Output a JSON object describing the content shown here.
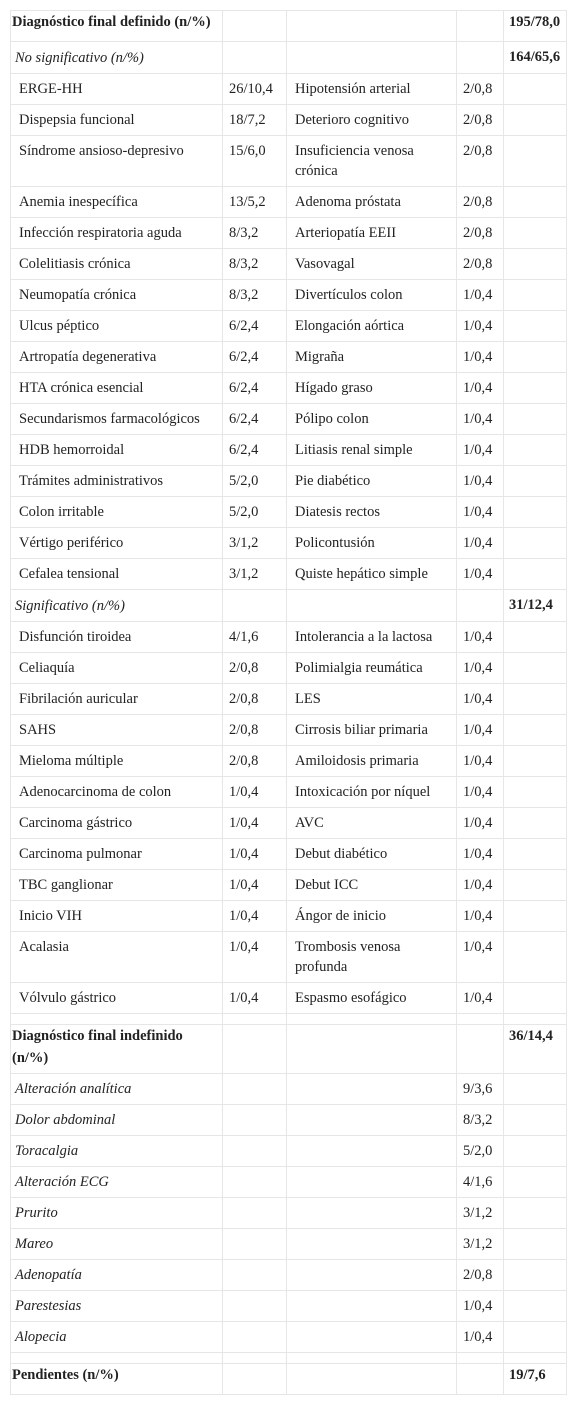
{
  "table": {
    "sections": [
      {
        "title": "Diagnóstico final definido (n/%)",
        "total": "195/78,0",
        "groups": [
          {
            "title": "No significativo (n/%)",
            "total": "164/65,6",
            "rows": [
              [
                "ERGE-HH",
                "26/10,4",
                "Hipotensión arterial",
                "2/0,8"
              ],
              [
                "Dispepsia funcional",
                "18/7,2",
                "Deterioro cognitivo",
                "2/0,8"
              ],
              [
                "Síndrome ansioso-depresivo",
                "15/6,0",
                "Insuficiencia venosa crónica",
                "2/0,8"
              ],
              [
                "Anemia inespecífica",
                "13/5,2",
                "Adenoma próstata",
                "2/0,8"
              ],
              [
                "Infección respiratoria aguda",
                "8/3,2",
                "Arteriopatía EEII",
                "2/0,8"
              ],
              [
                "Colelitiasis crónica",
                "8/3,2",
                "Vasovagal",
                "2/0,8"
              ],
              [
                "Neumopatía crónica",
                "8/3,2",
                "Divertículos colon",
                "1/0,4"
              ],
              [
                "Ulcus péptico",
                "6/2,4",
                "Elongación aórtica",
                "1/0,4"
              ],
              [
                "Artropatía degenerativa",
                "6/2,4",
                "Migraña",
                "1/0,4"
              ],
              [
                "HTA crónica esencial",
                "6/2,4",
                "Hígado graso",
                "1/0,4"
              ],
              [
                "Secundarismos farmacológicos",
                "6/2,4",
                "Pólipo colon",
                "1/0,4"
              ],
              [
                "HDB hemorroidal",
                "6/2,4",
                "Litiasis renal simple",
                "1/0,4"
              ],
              [
                "Trámites administrativos",
                "5/2,0",
                "Pie diabético",
                "1/0,4"
              ],
              [
                "Colon irritable",
                "5/2,0",
                "Diatesis rectos",
                "1/0,4"
              ],
              [
                "Vértigo periférico",
                "3/1,2",
                "Policontusión",
                "1/0,4"
              ],
              [
                "Cefalea tensional",
                "3/1,2",
                "Quiste hepático simple",
                "1/0,4"
              ]
            ]
          },
          {
            "title": "Significativo (n/%)",
            "total": "31/12,4",
            "rows": [
              [
                "Disfunción tiroidea",
                "4/1,6",
                "Intolerancia a la lactosa",
                "1/0,4"
              ],
              [
                "Celiaquía",
                "2/0,8",
                "Polimialgia reumática",
                "1/0,4"
              ],
              [
                "Fibrilación auricular",
                "2/0,8",
                "LES",
                "1/0,4"
              ],
              [
                "SAHS",
                "2/0,8",
                "Cirrosis biliar primaria",
                "1/0,4"
              ],
              [
                "Mieloma múltiple",
                "2/0,8",
                "Amiloidosis primaria",
                "1/0,4"
              ],
              [
                "Adenocarcinoma de colon",
                "1/0,4",
                "Intoxicación por níquel",
                "1/0,4"
              ],
              [
                "Carcinoma gástrico",
                "1/0,4",
                "AVC",
                "1/0,4"
              ],
              [
                "Carcinoma pulmonar",
                "1/0,4",
                "Debut diabético",
                "1/0,4"
              ],
              [
                "TBC ganglionar",
                "1/0,4",
                "Debut ICC",
                "1/0,4"
              ],
              [
                "Inicio VIH",
                "1/0,4",
                "Ángor de inicio",
                "1/0,4"
              ],
              [
                "Acalasia",
                "1/0,4",
                "Trombosis venosa profunda",
                "1/0,4"
              ],
              [
                "Vólvulo gástrico",
                "1/0,4",
                "Espasmo esofágico",
                "1/0,4"
              ]
            ]
          }
        ]
      },
      {
        "title": "Diagnóstico final indefinido (n/%)",
        "total": "36/14,4",
        "items": [
          [
            "Alteración analítica",
            "9/3,6"
          ],
          [
            "Dolor abdominal",
            "8/3,2"
          ],
          [
            "Toracalgia",
            "5/2,0"
          ],
          [
            "Alteración ECG",
            "4/1,6"
          ],
          [
            "Prurito",
            "3/1,2"
          ],
          [
            "Mareo",
            "3/1,2"
          ],
          [
            "Adenopatía",
            "2/0,8"
          ],
          [
            "Parestesias",
            "1/0,4"
          ],
          [
            "Alopecia",
            "1/0,4"
          ]
        ]
      },
      {
        "title": "Pendientes (n/%)",
        "total": "19/7,6"
      }
    ]
  }
}
